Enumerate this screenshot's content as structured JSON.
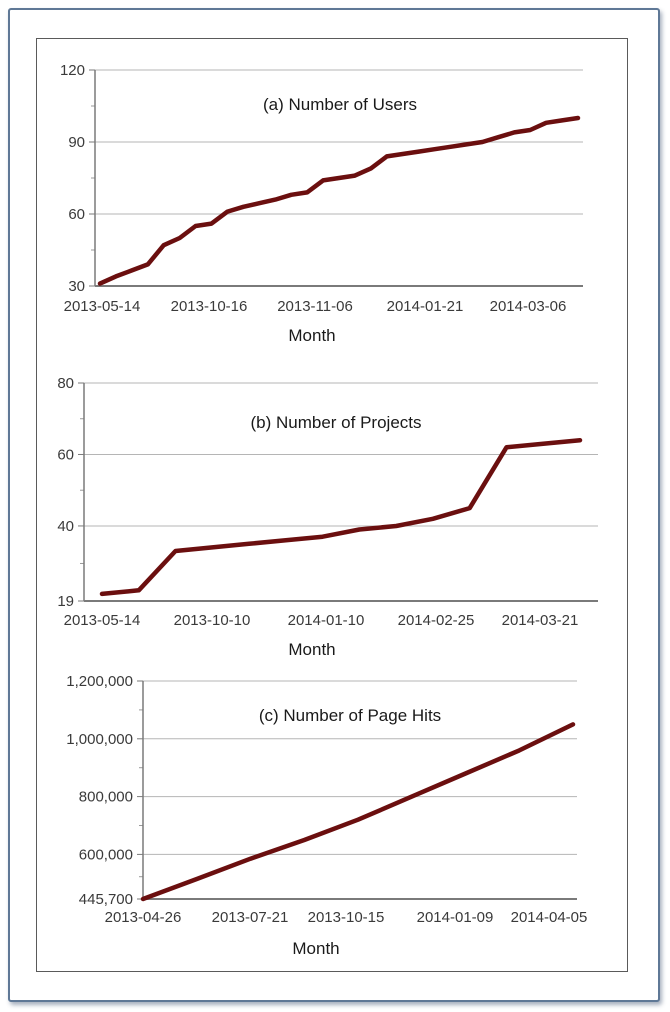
{
  "chart_data": [
    {
      "type": "line",
      "title": "(a) Number of Users",
      "xlabel": "Month",
      "ylabel": "",
      "ylim": [
        30,
        120
      ],
      "yticks": [
        "30",
        "60",
        "90",
        "120"
      ],
      "xtick_labels": [
        "2013-05-14",
        "2013-10-16",
        "2013-11-06",
        "2014-01-21",
        "2014-03-06"
      ],
      "grid": true,
      "series": [
        {
          "color": "#6b0f0f",
          "x": [
            0,
            1,
            2,
            3,
            4,
            5,
            6,
            7,
            8,
            9,
            10,
            11,
            12,
            13,
            14,
            15,
            16,
            17,
            18,
            19,
            20,
            21,
            22,
            23,
            24,
            25,
            26,
            27,
            28,
            29,
            30
          ],
          "values": [
            31,
            34,
            36.5,
            39,
            47,
            50,
            55,
            56,
            61,
            63,
            64.5,
            66,
            68,
            69,
            74,
            75,
            76,
            79,
            84,
            85,
            86,
            87,
            88,
            89,
            90,
            92,
            94,
            95,
            98,
            99,
            100
          ]
        }
      ]
    },
    {
      "type": "line",
      "title": "(b) Number of Projects",
      "xlabel": "Month",
      "ylabel": "",
      "ylim": [
        19,
        80
      ],
      "yticks": [
        "19",
        "40",
        "60",
        "80"
      ],
      "xtick_labels": [
        "2013-05-14",
        "2013-10-10",
        "2014-01-10",
        "2014-02-25",
        "2014-03-21"
      ],
      "grid": true,
      "series": [
        {
          "color": "#6b0f0f",
          "x": [
            0,
            1,
            2,
            3,
            4,
            5,
            6,
            7,
            8,
            9,
            10,
            11,
            12,
            13
          ],
          "values": [
            21,
            22,
            33,
            34,
            35,
            36,
            37,
            39,
            40,
            42,
            45,
            62,
            63,
            64
          ]
        }
      ]
    },
    {
      "type": "line",
      "title": "(c) Number of Page Hits",
      "xlabel": "Month",
      "ylabel": "",
      "ylim": [
        445700,
        1200000
      ],
      "yticks": [
        "445,700",
        "600,000",
        "800,000",
        "1,000,000",
        "1,200,000"
      ],
      "xtick_labels": [
        "2013-04-26",
        "2013-07-21",
        "2013-10-15",
        "2014-01-09",
        "2014-04-05"
      ],
      "grid": true,
      "series": [
        {
          "color": "#6b0f0f",
          "x": [
            0,
            1,
            2,
            3,
            4,
            5,
            6,
            7,
            8
          ],
          "values": [
            445700,
            515000,
            585000,
            650000,
            720000,
            800000,
            880000,
            960000,
            1050000
          ]
        }
      ]
    }
  ]
}
